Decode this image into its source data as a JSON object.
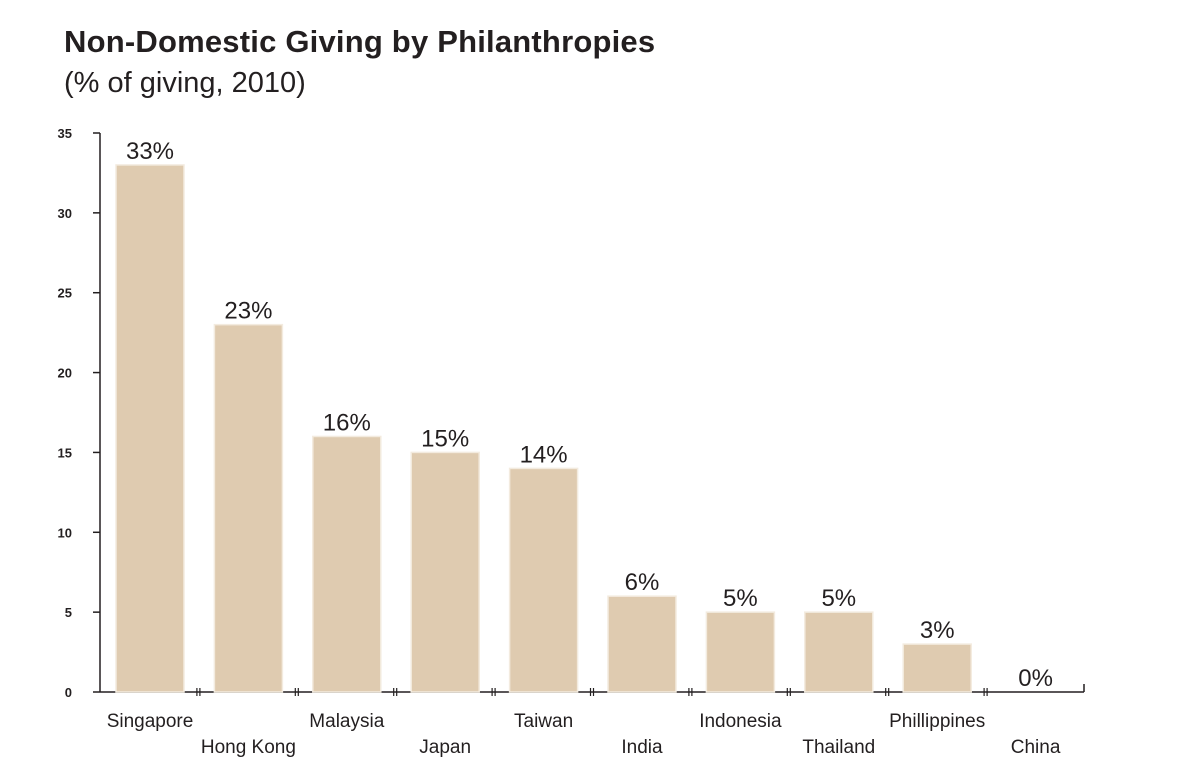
{
  "header": {
    "title": "Non-Domestic Giving by Philanthropies",
    "subtitle": "(% of giving, 2010)"
  },
  "chart_data": {
    "type": "bar",
    "title": "Non-Domestic Giving by Philanthropies",
    "subtitle": "(% of giving, 2010)",
    "xlabel": "",
    "ylabel": "",
    "ylim": [
      0,
      35
    ],
    "yticks": [
      0,
      5,
      10,
      15,
      20,
      25,
      30,
      35
    ],
    "categories": [
      "Singapore",
      "Hong Kong",
      "Malaysia",
      "Japan",
      "Taiwan",
      "India",
      "Indonesia",
      "Thailand",
      "Phillippines",
      "China"
    ],
    "values": [
      33,
      23,
      16,
      15,
      14,
      6,
      5,
      5,
      3,
      0
    ],
    "data_labels": [
      "33%",
      "23%",
      "16%",
      "15%",
      "14%",
      "6%",
      "5%",
      "5%",
      "3%",
      "0%"
    ],
    "bar_color": "#dfcbb0",
    "grid": false,
    "legend": "none"
  }
}
